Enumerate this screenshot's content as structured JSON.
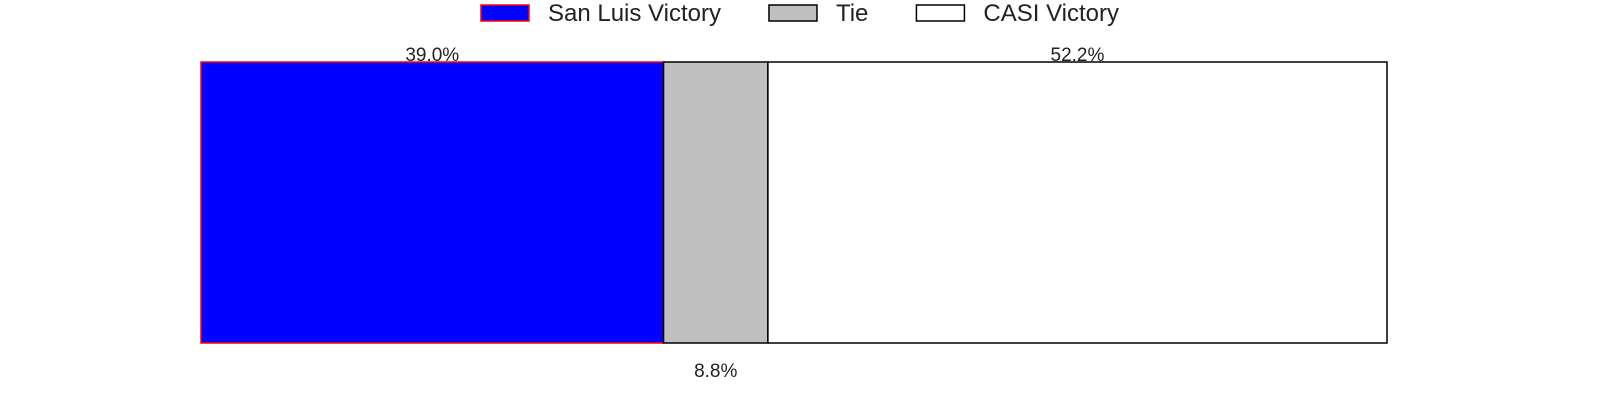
{
  "chart_data": {
    "type": "bar",
    "orientation": "horizontal",
    "stacked": true,
    "categories": [
      ""
    ],
    "series": [
      {
        "name": "San Luis Victory",
        "values": [
          39.0
        ],
        "color": "#0000ff",
        "edge_color": "#ff0000",
        "label": "39.0%",
        "label_position": "above"
      },
      {
        "name": "Tie",
        "values": [
          8.8
        ],
        "color": "#c0c0c0",
        "edge_color": "#000000",
        "label": "8.8%",
        "label_position": "below"
      },
      {
        "name": "CASI Victory",
        "values": [
          52.2
        ],
        "color": "#ffffff",
        "edge_color": "#000000",
        "label": "52.2%",
        "label_position": "above"
      }
    ],
    "xlim": [
      0,
      100
    ],
    "title": "",
    "xlabel": "",
    "ylabel": "",
    "grid": false,
    "axes_visible": false,
    "legend": {
      "placement": "top-center",
      "columns": 3
    }
  }
}
